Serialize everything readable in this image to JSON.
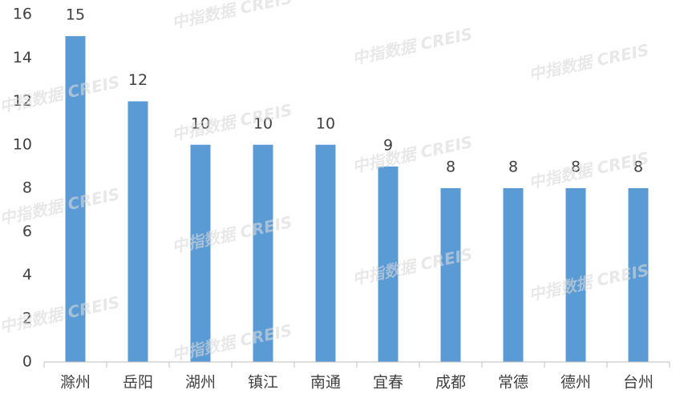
{
  "chart_data": {
    "type": "bar",
    "categories": [
      "滁州",
      "岳阳",
      "湖州",
      "镇江",
      "南通",
      "宜春",
      "成都",
      "常德",
      "德州",
      "台州"
    ],
    "values": [
      15,
      12,
      10,
      10,
      10,
      9,
      8,
      8,
      8,
      8
    ],
    "color": "#5b9bd5",
    "ylim": [
      0,
      16
    ],
    "yticks": [
      0,
      2,
      4,
      6,
      8,
      10,
      12,
      14,
      16
    ],
    "grid": false,
    "watermark": "中指数据 CREIS"
  }
}
